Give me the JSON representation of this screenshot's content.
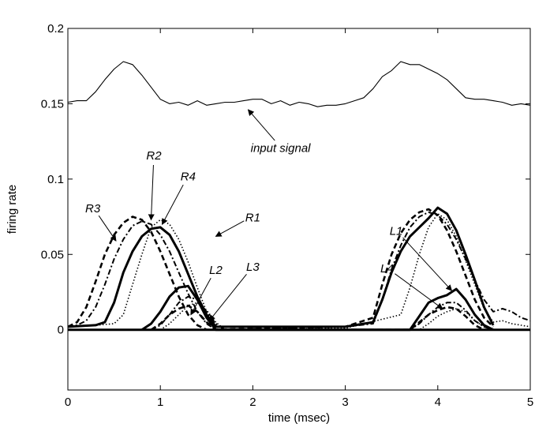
{
  "chart_data": {
    "type": "line",
    "title": "",
    "xlabel": "time (msec)",
    "ylabel": "firing rate",
    "xlim": [
      0,
      5
    ],
    "ylim": [
      -0.04,
      0.2
    ],
    "xticks": [
      0,
      1,
      2,
      3,
      4,
      5
    ],
    "xtick_labels": [
      "0",
      "1",
      "2",
      "3",
      "4",
      "5"
    ],
    "yticks": [
      0,
      0.05,
      0.1,
      0.15,
      0.2
    ],
    "ytick_labels": [
      "0",
      "0.05",
      "0.1",
      "0.15",
      "0.2"
    ],
    "grid": false,
    "series": [
      {
        "name": "input signal",
        "style": "thin-solid",
        "x": [
          0,
          0.1,
          0.2,
          0.3,
          0.4,
          0.5,
          0.6,
          0.7,
          0.8,
          0.9,
          1.0,
          1.1,
          1.2,
          1.3,
          1.4,
          1.5,
          1.6,
          1.7,
          1.8,
          1.9,
          2.0,
          2.1,
          2.2,
          2.3,
          2.4,
          2.5,
          2.6,
          2.7,
          2.8,
          2.9,
          3.0,
          3.1,
          3.2,
          3.3,
          3.4,
          3.5,
          3.6,
          3.7,
          3.8,
          3.9,
          4.0,
          4.1,
          4.2,
          4.3,
          4.4,
          4.5,
          4.6,
          4.7,
          4.8,
          4.9,
          5.0
        ],
        "y": [
          0.151,
          0.152,
          0.152,
          0.158,
          0.166,
          0.173,
          0.178,
          0.176,
          0.169,
          0.161,
          0.153,
          0.15,
          0.151,
          0.149,
          0.152,
          0.149,
          0.15,
          0.151,
          0.151,
          0.152,
          0.153,
          0.153,
          0.15,
          0.152,
          0.149,
          0.151,
          0.15,
          0.148,
          0.149,
          0.149,
          0.15,
          0.152,
          0.154,
          0.16,
          0.168,
          0.172,
          0.178,
          0.176,
          0.176,
          0.173,
          0.17,
          0.166,
          0.16,
          0.154,
          0.153,
          0.153,
          0.152,
          0.151,
          0.149,
          0.15,
          0.149
        ]
      },
      {
        "name": "R1",
        "style": "dotted",
        "x": [
          0,
          0.3,
          0.5,
          0.6,
          0.7,
          0.8,
          0.9,
          1.0,
          1.1,
          1.2,
          1.3,
          1.4,
          1.5,
          1.6,
          1.7,
          3.0,
          3.6,
          3.7,
          3.8,
          3.9,
          4.0,
          4.1,
          4.2,
          4.3,
          4.4,
          4.5,
          4.6,
          4.7,
          4.8,
          5.0
        ],
        "y": [
          0.002,
          0.003,
          0.004,
          0.01,
          0.03,
          0.05,
          0.068,
          0.073,
          0.07,
          0.06,
          0.045,
          0.028,
          0.012,
          0.003,
          0.0,
          0.001,
          0.01,
          0.028,
          0.05,
          0.068,
          0.077,
          0.073,
          0.062,
          0.046,
          0.03,
          0.014,
          0.005,
          0.006,
          0.004,
          0.002
        ]
      },
      {
        "name": "R2",
        "style": "dash-dot",
        "x": [
          0,
          0.1,
          0.2,
          0.3,
          0.4,
          0.5,
          0.6,
          0.7,
          0.8,
          0.9,
          1.0,
          1.1,
          1.2,
          1.3,
          1.4,
          1.5,
          1.6,
          3.0,
          3.3,
          3.4,
          3.5,
          3.6,
          3.7,
          3.8,
          3.9,
          4.0,
          4.1,
          4.2,
          4.3,
          4.4,
          4.5,
          4.6,
          4.7,
          4.8,
          4.9,
          5.0
        ],
        "y": [
          0.002,
          0.003,
          0.006,
          0.015,
          0.03,
          0.047,
          0.06,
          0.069,
          0.072,
          0.07,
          0.063,
          0.052,
          0.038,
          0.024,
          0.012,
          0.004,
          0.0,
          0.002,
          0.004,
          0.02,
          0.04,
          0.056,
          0.068,
          0.075,
          0.078,
          0.076,
          0.07,
          0.06,
          0.047,
          0.033,
          0.02,
          0.012,
          0.014,
          0.012,
          0.008,
          0.006
        ]
      },
      {
        "name": "R3",
        "style": "dashed",
        "x": [
          0,
          0.1,
          0.2,
          0.3,
          0.4,
          0.5,
          0.6,
          0.7,
          0.8,
          0.9,
          1.0,
          1.1,
          1.2,
          1.3,
          1.4,
          1.5,
          3.0,
          3.3,
          3.4,
          3.5,
          3.6,
          3.7,
          3.8,
          3.9,
          4.0,
          4.1,
          4.2,
          4.3,
          4.4,
          4.5,
          4.6
        ],
        "y": [
          0.002,
          0.005,
          0.015,
          0.032,
          0.05,
          0.063,
          0.071,
          0.075,
          0.073,
          0.065,
          0.052,
          0.037,
          0.022,
          0.01,
          0.003,
          0.0,
          0.002,
          0.008,
          0.03,
          0.05,
          0.064,
          0.073,
          0.078,
          0.08,
          0.076,
          0.066,
          0.052,
          0.036,
          0.02,
          0.008,
          0.002
        ]
      },
      {
        "name": "R4",
        "style": "thick-solid",
        "x": [
          0,
          0.3,
          0.4,
          0.5,
          0.6,
          0.7,
          0.8,
          0.9,
          1.0,
          1.1,
          1.2,
          1.3,
          1.4,
          1.5,
          1.6,
          3.0,
          3.3,
          3.4,
          3.5,
          3.6,
          3.7,
          3.8,
          3.9,
          4.0,
          4.1,
          4.2,
          4.3,
          4.4,
          4.5,
          4.6
        ],
        "y": [
          0.002,
          0.003,
          0.005,
          0.018,
          0.038,
          0.052,
          0.062,
          0.067,
          0.068,
          0.063,
          0.052,
          0.037,
          0.022,
          0.01,
          0.002,
          0.002,
          0.005,
          0.02,
          0.038,
          0.052,
          0.062,
          0.068,
          0.074,
          0.081,
          0.077,
          0.066,
          0.05,
          0.033,
          0.015,
          0.003
        ]
      },
      {
        "name": "L1",
        "style": "thick-solid",
        "x": [
          0.8,
          0.9,
          1.0,
          1.1,
          1.2,
          1.3,
          1.4,
          1.5,
          1.6,
          3.7,
          3.8,
          3.9,
          4.0,
          4.1,
          4.2,
          4.3,
          4.4,
          4.5,
          4.6
        ],
        "y": [
          0.0,
          0.004,
          0.012,
          0.022,
          0.028,
          0.029,
          0.02,
          0.008,
          0.0,
          0.0,
          0.009,
          0.018,
          0.021,
          0.023,
          0.027,
          0.02,
          0.01,
          0.003,
          0.0
        ]
      },
      {
        "name": "L2",
        "style": "dash-dot",
        "x": [
          0.9,
          1.0,
          1.1,
          1.2,
          1.3,
          1.4,
          1.5,
          1.6,
          1.7,
          3.7,
          3.8,
          3.9,
          4.0,
          4.1,
          4.2,
          4.3,
          4.4,
          4.5,
          4.6
        ],
        "y": [
          0.0,
          0.003,
          0.01,
          0.018,
          0.022,
          0.02,
          0.012,
          0.004,
          0.0,
          0.0,
          0.004,
          0.01,
          0.015,
          0.018,
          0.018,
          0.013,
          0.006,
          0.002,
          0.0
        ]
      },
      {
        "name": "L3",
        "style": "dotted",
        "x": [
          1.0,
          1.1,
          1.2,
          1.3,
          1.4,
          1.5,
          1.6,
          1.7,
          3.8,
          3.9,
          4.0,
          4.1,
          4.2,
          4.3,
          4.4,
          4.5,
          4.6
        ],
        "y": [
          0.0,
          0.004,
          0.01,
          0.016,
          0.018,
          0.013,
          0.005,
          0.0,
          0.0,
          0.004,
          0.009,
          0.012,
          0.014,
          0.012,
          0.006,
          0.002,
          0.0
        ]
      },
      {
        "name": "L4",
        "style": "dashed",
        "x": [
          0.9,
          1.0,
          1.1,
          1.2,
          1.3,
          1.4,
          1.5,
          1.6,
          3.7,
          3.8,
          3.9,
          4.0,
          4.1,
          4.2,
          4.3,
          4.4,
          4.5
        ],
        "y": [
          0.0,
          0.004,
          0.01,
          0.014,
          0.016,
          0.012,
          0.005,
          0.0,
          0.0,
          0.005,
          0.01,
          0.013,
          0.015,
          0.014,
          0.009,
          0.003,
          0.0
        ]
      },
      {
        "name": "baseline",
        "style": "thick-solid",
        "x": [
          0,
          5
        ],
        "y": [
          0,
          0
        ]
      }
    ],
    "annotations": [
      {
        "text": "input signal",
        "text_at": [
          2.3,
          0.118
        ],
        "arrow_to": [
          1.95,
          0.146
        ]
      },
      {
        "text": "R2",
        "text_at": [
          0.93,
          0.113
        ],
        "arrow_to": [
          0.9,
          0.073
        ]
      },
      {
        "text": "R4",
        "text_at": [
          1.3,
          0.099
        ],
        "arrow_to": [
          1.02,
          0.07
        ]
      },
      {
        "text": "R3",
        "text_at": [
          0.27,
          0.078
        ],
        "arrow_to": [
          0.52,
          0.059
        ]
      },
      {
        "text": "R1",
        "text_at": [
          2.0,
          0.072
        ],
        "arrow_to": [
          1.6,
          0.062
        ]
      },
      {
        "text": "L2",
        "text_at": [
          1.6,
          0.037
        ],
        "arrow_to": [
          1.33,
          0.01
        ]
      },
      {
        "text": "L3",
        "text_at": [
          2.0,
          0.039
        ],
        "arrow_to": [
          1.53,
          0.006
        ]
      },
      {
        "text": "L1",
        "text_at": [
          3.55,
          0.063
        ],
        "arrow_to": [
          4.15,
          0.026
        ]
      },
      {
        "text": "L4",
        "text_at": [
          3.45,
          0.038
        ],
        "arrow_to": [
          4.05,
          0.014
        ]
      }
    ]
  }
}
